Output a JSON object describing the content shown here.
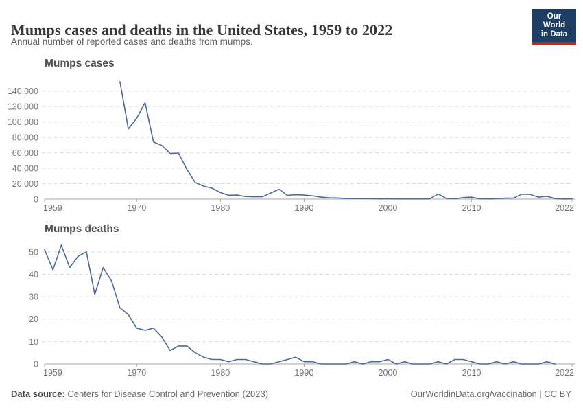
{
  "header": {
    "title": "Mumps cases and deaths in the United States, 1959 to 2022",
    "subtitle": "Annual number of reported cases and deaths from mumps.",
    "logo": {
      "line1": "Our World",
      "line2": "in Data"
    }
  },
  "footer": {
    "source_label": "Data source:",
    "source_value": "Centers for Disease Control and Prevention (2023)",
    "right_text": "OurWorldinData.org/vaccination | CC BY"
  },
  "colors": {
    "line": "#4C6A9C",
    "grid": "#dcdcdc",
    "axis": "#a7a7a7",
    "tick_label": "#76797c",
    "logo_bg": "#1d3d63",
    "logo_accent": "#bf2b26"
  },
  "chart_data": [
    {
      "type": "line",
      "title": "Mumps cases",
      "xlabel": "",
      "ylabel": "",
      "grid": true,
      "legend": "none",
      "xlim": [
        1959,
        2022
      ],
      "x_ticks": [
        1959,
        1970,
        1980,
        1990,
        2000,
        2010,
        2022
      ],
      "ylim": [
        0,
        140000
      ],
      "y_tick_step": 20000,
      "series": [
        {
          "name": "Mumps cases",
          "x": [
            1968,
            1969,
            1970,
            1971,
            1972,
            1973,
            1974,
            1975,
            1976,
            1977,
            1978,
            1979,
            1980,
            1981,
            1982,
            1983,
            1984,
            1985,
            1986,
            1987,
            1988,
            1989,
            1990,
            1991,
            1992,
            1993,
            1994,
            1995,
            1996,
            1997,
            1998,
            1999,
            2000,
            2001,
            2002,
            2003,
            2004,
            2005,
            2006,
            2007,
            2008,
            2009,
            2010,
            2011,
            2012,
            2013,
            2014,
            2015,
            2016,
            2017,
            2018,
            2019,
            2020,
            2021,
            2022
          ],
          "values": [
            152209,
            90918,
            104953,
            124939,
            74215,
            69612,
            59128,
            59647,
            38492,
            21436,
            16817,
            14225,
            8576,
            4941,
            5270,
            3355,
            3021,
            2982,
            7790,
            12848,
            4866,
            5712,
            5292,
            4264,
            2572,
            1692,
            1537,
            906,
            751,
            683,
            666,
            387,
            338,
            266,
            270,
            231,
            258,
            314,
            6584,
            800,
            454,
            1991,
            2612,
            404,
            229,
            584,
            1223,
            1329,
            6369,
            6109,
            2515,
            3780,
            616,
            139,
            322
          ]
        }
      ]
    },
    {
      "type": "line",
      "title": "Mumps deaths",
      "xlabel": "",
      "ylabel": "",
      "grid": true,
      "legend": "none",
      "xlim": [
        1959,
        2022
      ],
      "x_ticks": [
        1959,
        1970,
        1980,
        1990,
        2000,
        2010,
        2022
      ],
      "ylim": [
        0,
        50
      ],
      "y_tick_step": 10,
      "series": [
        {
          "name": "Mumps deaths",
          "x": [
            1959,
            1960,
            1961,
            1962,
            1963,
            1964,
            1965,
            1966,
            1967,
            1968,
            1969,
            1970,
            1971,
            1972,
            1973,
            1974,
            1975,
            1976,
            1977,
            1978,
            1979,
            1980,
            1981,
            1982,
            1983,
            1984,
            1985,
            1986,
            1987,
            1988,
            1989,
            1990,
            1991,
            1992,
            1993,
            1994,
            1995,
            1996,
            1997,
            1998,
            1999,
            2000,
            2001,
            2002,
            2003,
            2004,
            2005,
            2006,
            2007,
            2008,
            2009,
            2010,
            2011,
            2012,
            2013,
            2014,
            2015,
            2016,
            2017,
            2018,
            2019,
            2020
          ],
          "values": [
            51,
            42,
            53,
            43,
            48,
            50,
            31,
            43,
            37,
            25,
            22,
            16,
            15,
            16,
            12,
            6,
            8,
            8,
            5,
            3,
            2,
            2,
            1,
            2,
            2,
            1,
            0,
            0,
            1,
            2,
            3,
            1,
            1,
            0,
            0,
            0,
            0,
            1,
            0,
            1,
            1,
            2,
            0,
            1,
            0,
            0,
            0,
            1,
            0,
            2,
            2,
            1,
            0,
            0,
            1,
            0,
            1,
            0,
            0,
            0,
            1,
            0
          ]
        }
      ]
    }
  ]
}
